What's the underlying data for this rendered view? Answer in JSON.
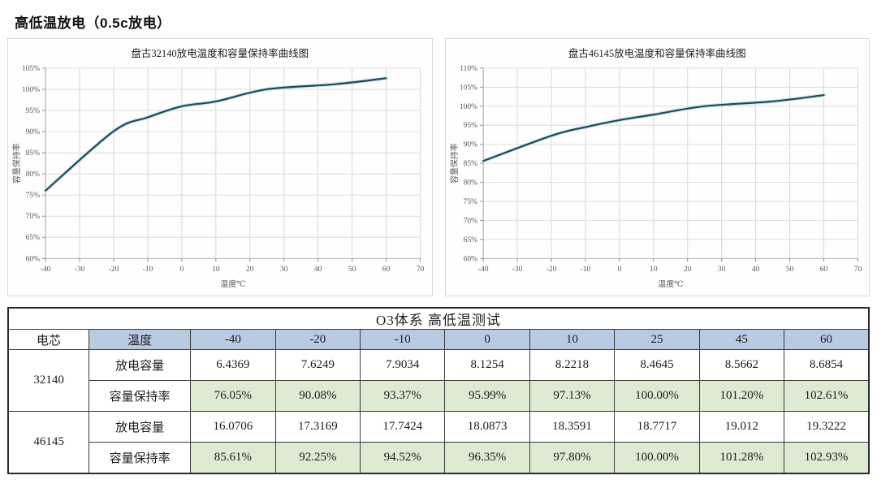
{
  "page": {
    "title": "高低温放电（0.5c放电）"
  },
  "chart_data": [
    {
      "type": "line",
      "title": "盘古32140放电温度和容量保持率曲线图",
      "xlabel": "温度℃",
      "ylabel": "容量保持率",
      "x": [
        -40,
        -20,
        -10,
        0,
        10,
        25,
        45,
        60
      ],
      "y": [
        76.05,
        90.08,
        93.37,
        95.99,
        97.13,
        100.0,
        101.2,
        102.61
      ],
      "xlim": [
        -40,
        70
      ],
      "xstep": 10,
      "ylim": [
        60,
        105
      ],
      "ystep": 5,
      "grid": true,
      "line_color": "#1d4b59"
    },
    {
      "type": "line",
      "title": "盘古46145放电温度和容量保持率曲线图",
      "xlabel": "温度℃",
      "ylabel": "容量保持率",
      "x": [
        -40,
        -20,
        -10,
        0,
        10,
        25,
        45,
        60
      ],
      "y": [
        85.61,
        92.25,
        94.52,
        96.35,
        97.8,
        100.0,
        101.28,
        102.93
      ],
      "xlim": [
        -40,
        70
      ],
      "xstep": 10,
      "ylim": [
        60,
        110
      ],
      "ystep": 5,
      "grid": true,
      "line_color": "#1d4b59"
    }
  ],
  "table": {
    "title": "O3体系 高低温测试",
    "col_headers": [
      "电芯",
      "温度",
      "-40",
      "-20",
      "-10",
      "0",
      "10",
      "25",
      "45",
      "60"
    ],
    "groups": [
      {
        "battery": "32140",
        "rows": [
          {
            "label": "放电容量",
            "highlight": false,
            "values": [
              "6.4369",
              "7.6249",
              "7.9034",
              "8.1254",
              "8.2218",
              "8.4645",
              "8.5662",
              "8.6854"
            ]
          },
          {
            "label": "容量保持率",
            "highlight": true,
            "values": [
              "76.05%",
              "90.08%",
              "93.37%",
              "95.99%",
              "97.13%",
              "100.00%",
              "101.20%",
              "102.61%"
            ]
          }
        ]
      },
      {
        "battery": "46145",
        "rows": [
          {
            "label": "放电容量",
            "highlight": false,
            "values": [
              "16.0706",
              "17.3169",
              "17.7424",
              "18.0873",
              "18.3591",
              "18.7717",
              "19.012",
              "19.3222"
            ]
          },
          {
            "label": "容量保持率",
            "highlight": true,
            "values": [
              "85.61%",
              "92.25%",
              "94.52%",
              "96.35%",
              "97.80%",
              "100.00%",
              "101.28%",
              "102.93%"
            ]
          }
        ]
      }
    ]
  },
  "colors": {
    "header_blue": "#b9cbe3",
    "retention_green": "#ddebd3",
    "curve": "#1d4b59",
    "grid": "#dcdcdc"
  }
}
